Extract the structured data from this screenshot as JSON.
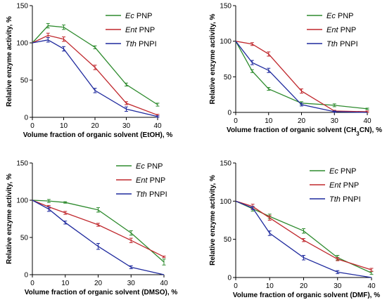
{
  "colors": {
    "ec": "#2e8b2e",
    "ent": "#c0282d",
    "tth": "#1f2a9e",
    "axis": "#000000"
  },
  "chart_data": [
    {
      "type": "line",
      "xlabel": "Volume fraction of organic solvent (EtOH), %",
      "ylabel": "Relative enzyme activity, %",
      "xlim": [
        0,
        40
      ],
      "ylim": [
        0,
        150
      ],
      "xticks": [
        "0",
        "10",
        "20",
        "30",
        "40"
      ],
      "yticks": [
        "0",
        "50",
        "100",
        "150"
      ],
      "legend": "top-right",
      "series": [
        {
          "key": "ec",
          "name_italic": "Ec",
          "name_rest": " PNP",
          "x": [
            0,
            5,
            10,
            20,
            30,
            40
          ],
          "y": [
            100,
            123,
            121,
            94,
            44,
            17
          ],
          "err": [
            0,
            3,
            3,
            2,
            2,
            2
          ]
        },
        {
          "key": "ent",
          "name_italic": "Ent",
          "name_rest": " PNP",
          "x": [
            0,
            5,
            10,
            20,
            30,
            40
          ],
          "y": [
            100,
            110,
            105,
            67,
            19,
            3
          ],
          "err": [
            0,
            3,
            3,
            3,
            2,
            1
          ]
        },
        {
          "key": "tth",
          "name_italic": "Tth",
          "name_rest": " PNPI",
          "x": [
            0,
            5,
            10,
            20,
            30,
            40
          ],
          "y": [
            100,
            104,
            92,
            36,
            11,
            1
          ],
          "err": [
            0,
            3,
            3,
            3,
            3,
            1
          ]
        }
      ]
    },
    {
      "type": "line",
      "xlabel_pre": "Volume fraction of organic solvent (CH",
      "xlabel_sub": "3",
      "xlabel_post": "CN), %",
      "ylabel": "Relative enzyme activity, %",
      "xlim": [
        0,
        40
      ],
      "ylim": [
        0,
        150
      ],
      "xticks": [
        "0",
        "10",
        "20",
        "30",
        "40"
      ],
      "yticks": [
        "0",
        "50",
        "100",
        "150"
      ],
      "legend": "top-right",
      "series": [
        {
          "key": "ec",
          "name_italic": "Ec",
          "name_rest": " PNP",
          "x": [
            0,
            5,
            10,
            20,
            30,
            40
          ],
          "y": [
            100,
            58,
            33,
            13,
            10,
            5
          ],
          "err": [
            0,
            2,
            2,
            2,
            2,
            1
          ]
        },
        {
          "key": "ent",
          "name_italic": "Ent",
          "name_rest": " PNP",
          "x": [
            0,
            5,
            10,
            20,
            30,
            40
          ],
          "y": [
            100,
            96,
            82,
            30,
            2,
            1
          ],
          "err": [
            0,
            2,
            3,
            3,
            1,
            1
          ]
        },
        {
          "key": "tth",
          "name_italic": "Tth",
          "name_rest": " PNPI",
          "x": [
            0,
            5,
            10,
            20,
            30,
            40
          ],
          "y": [
            100,
            70,
            59,
            11,
            1,
            0
          ],
          "err": [
            0,
            3,
            3,
            2,
            1,
            0
          ]
        }
      ]
    },
    {
      "type": "line",
      "xlabel": "Volume fraction of organic solvent (DMSO), %",
      "ylabel": "Relative enzyme activity, %",
      "xlim": [
        0,
        40
      ],
      "ylim": [
        0,
        150
      ],
      "xticks": [
        "0",
        "10",
        "20",
        "30",
        "40"
      ],
      "yticks": [
        "0",
        "50",
        "100",
        "150"
      ],
      "legend": "top-right",
      "series": [
        {
          "key": "ec",
          "name_italic": "Ec",
          "name_rest": " PNP",
          "x": [
            0,
            5,
            10,
            20,
            30,
            40
          ],
          "y": [
            100,
            99,
            97,
            87,
            56,
            17
          ],
          "err": [
            0,
            2,
            1,
            3,
            3,
            4
          ]
        },
        {
          "key": "ent",
          "name_italic": "Ent",
          "name_rest": " PNP",
          "x": [
            0,
            5,
            10,
            20,
            30,
            40
          ],
          "y": [
            100,
            91,
            83,
            67,
            46,
            24
          ],
          "err": [
            0,
            2,
            2,
            2,
            3,
            1
          ]
        },
        {
          "key": "tth",
          "name_italic": "Tth",
          "name_rest": " PNPI",
          "x": [
            0,
            5,
            10,
            20,
            30,
            40
          ],
          "y": [
            100,
            88,
            70,
            38,
            10,
            0
          ],
          "err": [
            0,
            3,
            2,
            4,
            2,
            0
          ]
        }
      ]
    },
    {
      "type": "line",
      "xlabel": "Volume fraction of organic solvent (DMF), %",
      "ylabel": "Relative enzyme activity, %",
      "xlim": [
        0,
        40
      ],
      "ylim": [
        0,
        150
      ],
      "xticks": [
        "0",
        "10",
        "20",
        "30",
        "40"
      ],
      "yticks": [
        "0",
        "50",
        "100",
        "150"
      ],
      "legend": "top-right",
      "series": [
        {
          "key": "ec",
          "name_italic": "Ec",
          "name_rest": " PNP",
          "x": [
            0,
            5,
            10,
            20,
            30,
            40
          ],
          "y": [
            100,
            90,
            80,
            61,
            26,
            6
          ],
          "err": [
            0,
            3,
            3,
            3,
            3,
            2
          ]
        },
        {
          "key": "ent",
          "name_italic": "Ent",
          "name_rest": " PNP",
          "x": [
            0,
            5,
            10,
            20,
            30,
            40
          ],
          "y": [
            100,
            93,
            78,
            49,
            24,
            10
          ],
          "err": [
            0,
            3,
            3,
            2,
            2,
            2
          ]
        },
        {
          "key": "tth",
          "name_italic": "Tth",
          "name_rest": " PNPI",
          "x": [
            0,
            5,
            10,
            20,
            30,
            40
          ],
          "y": [
            100,
            91,
            58,
            26,
            7,
            0
          ],
          "err": [
            0,
            2,
            3,
            3,
            2,
            0
          ]
        }
      ]
    }
  ]
}
